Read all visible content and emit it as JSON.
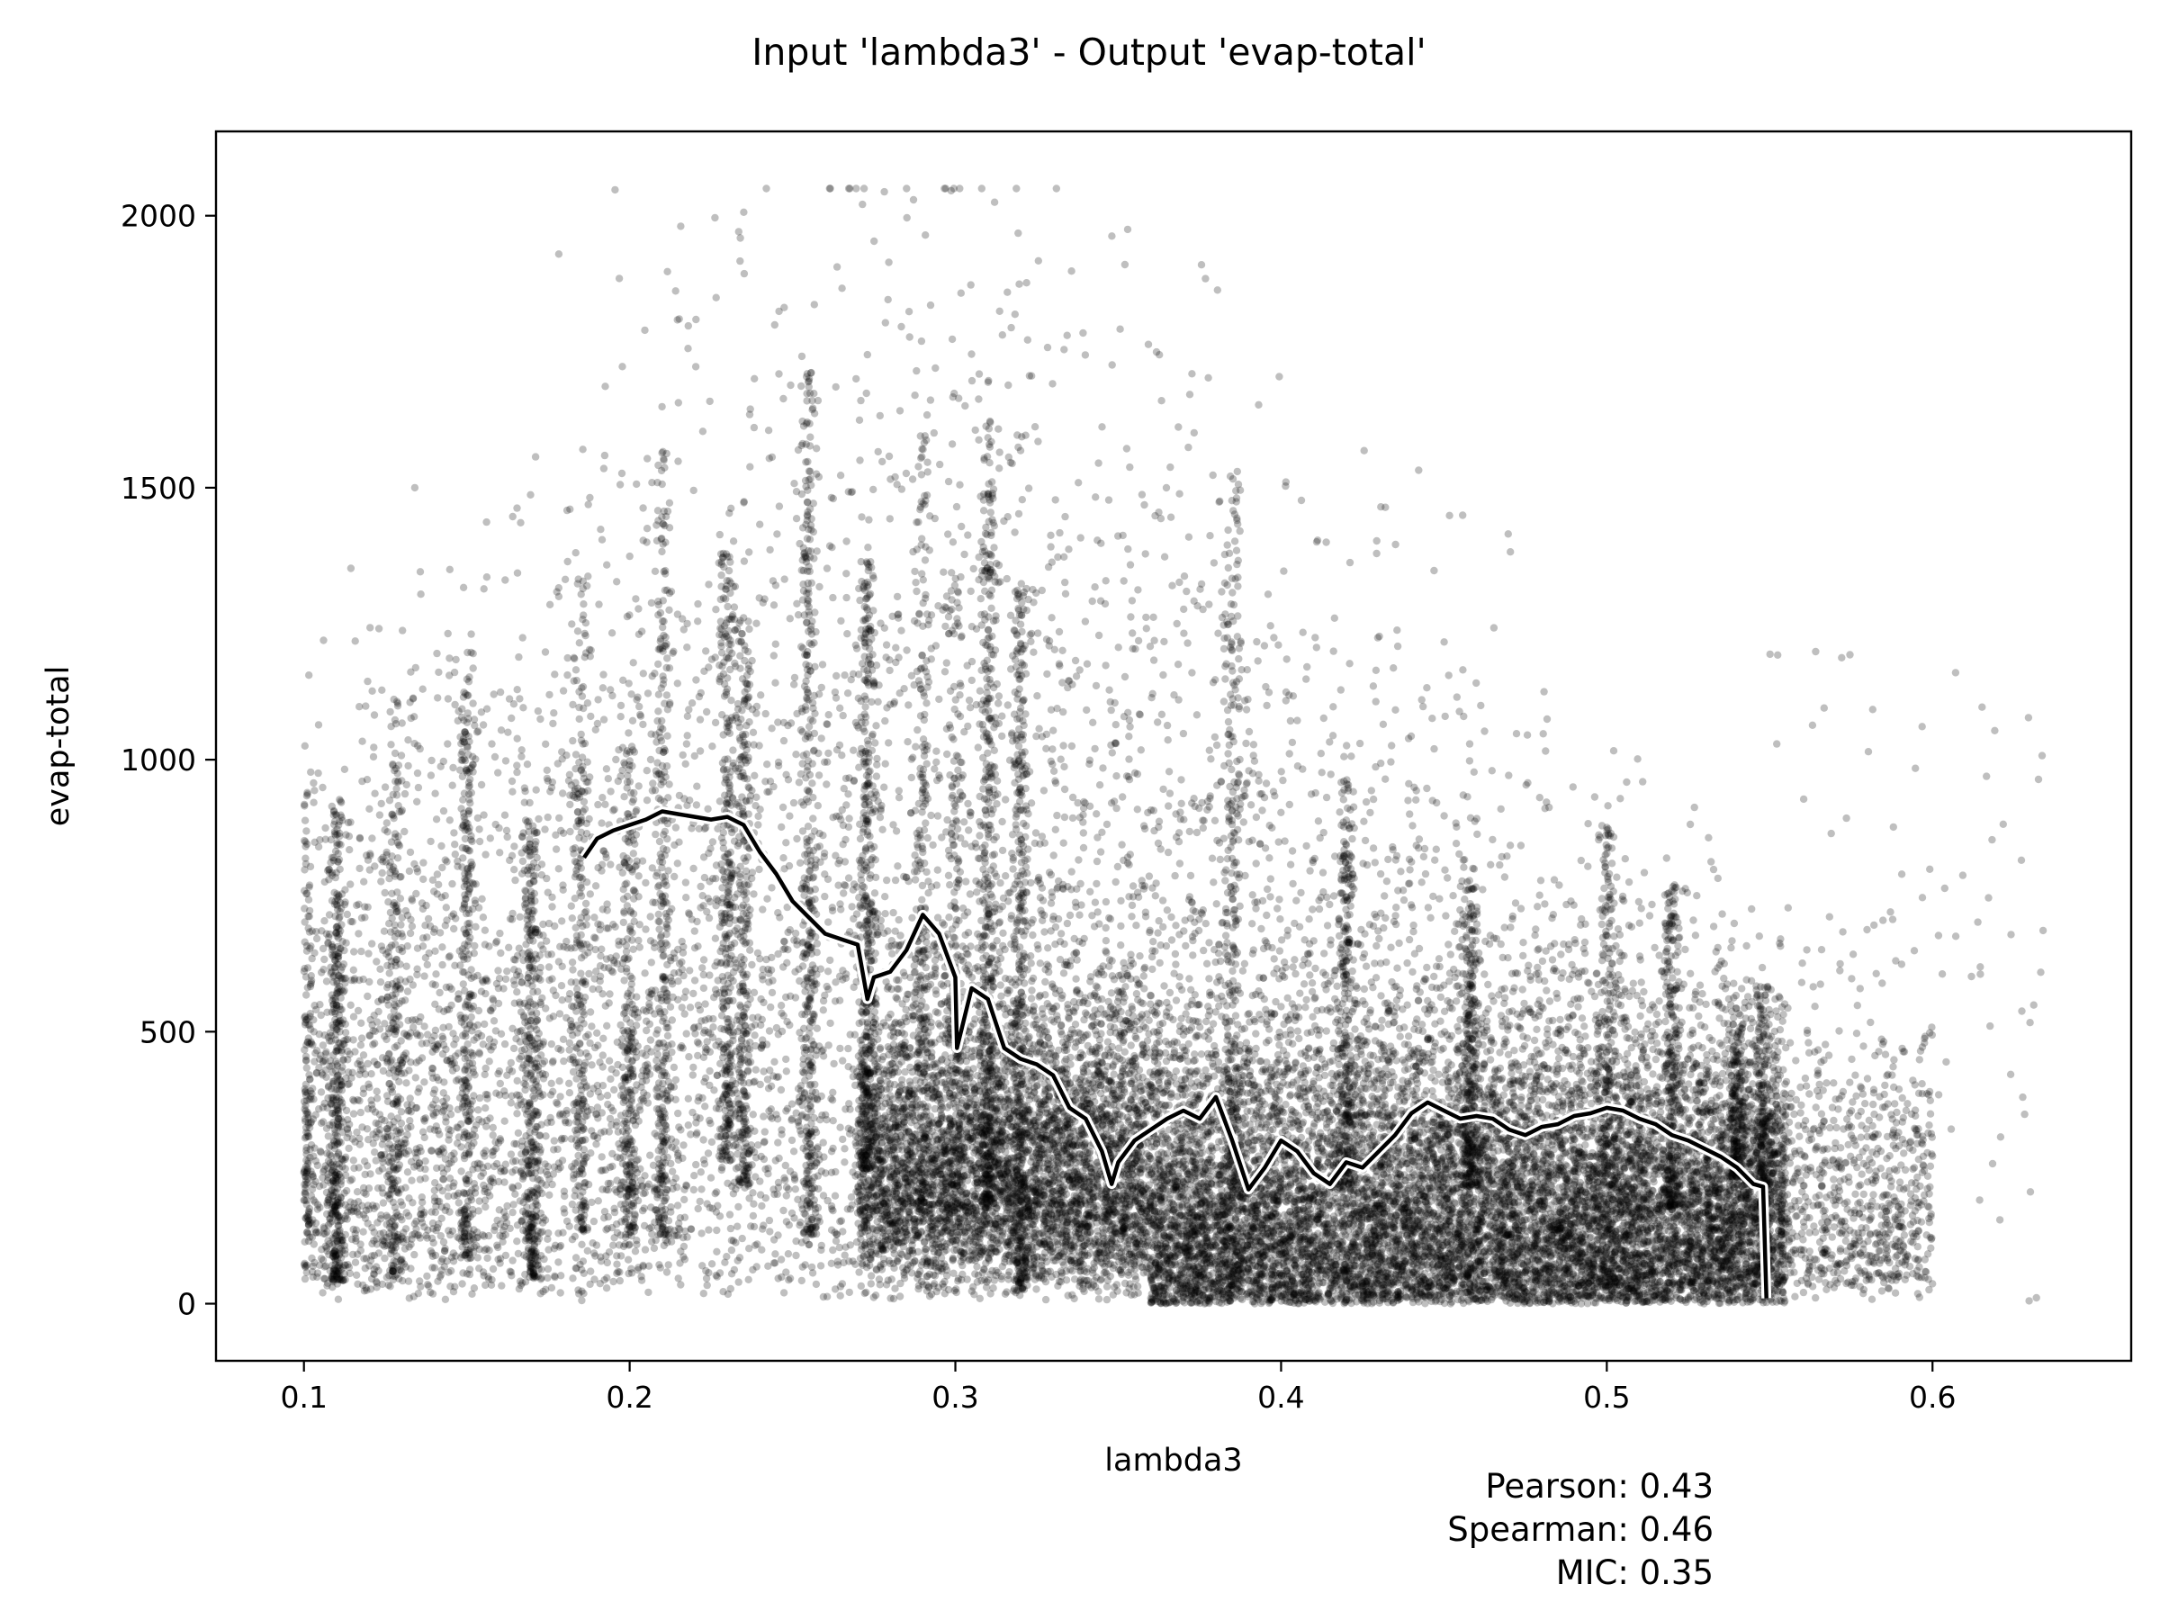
{
  "chart_data": {
    "type": "scatter",
    "title": "Input 'lambda3' - Output 'evap-total'",
    "xlabel": "lambda3",
    "ylabel": "evap-total",
    "xlim": [
      0.073,
      0.661
    ],
    "ylim": [
      -105,
      2155
    ],
    "xticks": [
      {
        "value": 0.1,
        "label": "0.1"
      },
      {
        "value": 0.2,
        "label": "0.2"
      },
      {
        "value": 0.3,
        "label": "0.3"
      },
      {
        "value": 0.4,
        "label": "0.4"
      },
      {
        "value": 0.5,
        "label": "0.5"
      },
      {
        "value": 0.6,
        "label": "0.6"
      }
    ],
    "yticks": [
      {
        "value": 0,
        "label": "0"
      },
      {
        "value": 500,
        "label": "500"
      },
      {
        "value": 1000,
        "label": "1000"
      },
      {
        "value": 1500,
        "label": "1500"
      },
      {
        "value": 2000,
        "label": "2000"
      }
    ],
    "grid": false,
    "marker_color": "#000000",
    "marker_opacity": 0.25,
    "trend_color": "#000000",
    "trend_halo_color": "#ffffff",
    "stats": [
      {
        "label": "Pearson: 0.43"
      },
      {
        "label": "Spearman: 0.46"
      },
      {
        "label": "MIC: 0.35"
      }
    ],
    "point_cloud": {
      "x_range": [
        0.1,
        0.634
      ],
      "y_range": [
        0,
        2050
      ],
      "shape": "dense scatter; mass concentrated at lambda3 0.27-0.55 and evap-total below 700, sparse spread to 2000 near 0.2-0.3",
      "vertical_streaks": [
        0.1,
        0.11,
        0.128,
        0.15,
        0.17,
        0.185,
        0.2,
        0.21,
        0.23,
        0.235,
        0.255,
        0.273,
        0.29,
        0.3,
        0.31,
        0.32,
        0.385,
        0.42,
        0.458,
        0.5,
        0.52,
        0.54,
        0.548
      ]
    },
    "series": [
      {
        "kind": "moving-average",
        "x": [
          0.186,
          0.19,
          0.195,
          0.2,
          0.205,
          0.21,
          0.215,
          0.22,
          0.225,
          0.23,
          0.235,
          0.24,
          0.245,
          0.25,
          0.255,
          0.26,
          0.265,
          0.27,
          0.273,
          0.275,
          0.28,
          0.285,
          0.29,
          0.295,
          0.3,
          0.3005,
          0.305,
          0.31,
          0.315,
          0.32,
          0.325,
          0.33,
          0.335,
          0.34,
          0.345,
          0.348,
          0.35,
          0.355,
          0.36,
          0.365,
          0.37,
          0.375,
          0.38,
          0.385,
          0.39,
          0.395,
          0.4,
          0.405,
          0.41,
          0.415,
          0.42,
          0.425,
          0.43,
          0.435,
          0.44,
          0.445,
          0.45,
          0.455,
          0.46,
          0.465,
          0.47,
          0.475,
          0.48,
          0.485,
          0.49,
          0.495,
          0.5,
          0.505,
          0.51,
          0.515,
          0.52,
          0.525,
          0.53,
          0.535,
          0.54,
          0.545,
          0.548,
          0.549
        ],
        "y": [
          820,
          855,
          870,
          880,
          890,
          905,
          900,
          895,
          890,
          895,
          880,
          830,
          790,
          740,
          710,
          680,
          670,
          660,
          560,
          600,
          610,
          650,
          715,
          680,
          600,
          470,
          580,
          560,
          470,
          450,
          440,
          420,
          360,
          340,
          280,
          220,
          260,
          300,
          320,
          340,
          355,
          340,
          380,
          300,
          210,
          250,
          300,
          280,
          240,
          220,
          260,
          250,
          280,
          310,
          350,
          370,
          355,
          340,
          345,
          340,
          320,
          310,
          325,
          330,
          345,
          350,
          360,
          355,
          340,
          330,
          310,
          300,
          285,
          270,
          250,
          220,
          215,
          10
        ]
      }
    ]
  }
}
